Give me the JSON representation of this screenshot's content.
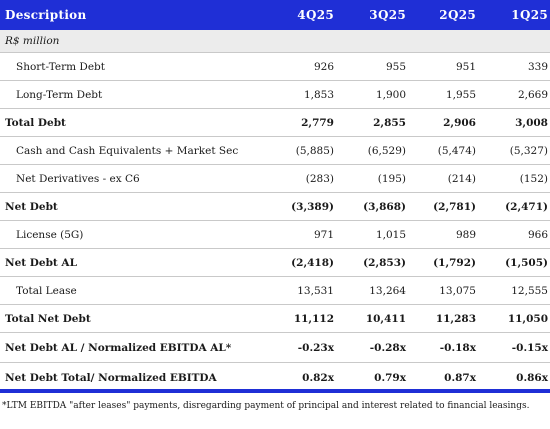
{
  "header": {
    "description": "Description",
    "periods": [
      "4Q25",
      "3Q25",
      "2Q25",
      "1Q25"
    ]
  },
  "unit_row": "R$ million",
  "rows": [
    {
      "label": "Short-Term Debt",
      "values": [
        "926",
        "955",
        "951",
        "339"
      ],
      "style": "sub"
    },
    {
      "label": "Long-Term Debt",
      "values": [
        "1,853",
        "1,900",
        "1,955",
        "2,669"
      ],
      "style": "sub"
    },
    {
      "label": "Total Debt",
      "values": [
        "2,779",
        "2,855",
        "2,906",
        "3,008"
      ],
      "style": "bold"
    },
    {
      "label": "Cash and Cash Equivalents + Market Sec",
      "values": [
        "(5,885)",
        "(6,529)",
        "(5,474)",
        "(5,327)"
      ],
      "style": "sub"
    },
    {
      "label": "Net Derivatives - ex C6",
      "values": [
        "(283)",
        "(195)",
        "(214)",
        "(152)"
      ],
      "style": "sub"
    },
    {
      "label": "Net Debt",
      "values": [
        "(3,389)",
        "(3,868)",
        "(2,781)",
        "(2,471)"
      ],
      "style": "bold"
    },
    {
      "label": "License (5G)",
      "values": [
        "971",
        "1,015",
        "989",
        "966"
      ],
      "style": "sub"
    },
    {
      "label": "Net Debt AL",
      "values": [
        "(2,418)",
        "(2,853)",
        "(1,792)",
        "(1,505)"
      ],
      "style": "bold"
    },
    {
      "label": "Total Lease",
      "values": [
        "13,531",
        "13,264",
        "13,075",
        "12,555"
      ],
      "style": "sub"
    },
    {
      "label": "Total Net Debt",
      "values": [
        "11,112",
        "10,411",
        "11,283",
        "11,050"
      ],
      "style": "bold"
    },
    {
      "label": "Net Debt AL / Normalized EBITDA AL*",
      "values": [
        "-0.23x",
        "-0.28x",
        "-0.18x",
        "-0.15x"
      ],
      "style": "bold tall"
    },
    {
      "label": "Net Debt Total/ Normalized EBITDA",
      "values": [
        "0.82x",
        "0.79x",
        "0.87x",
        "0.86x"
      ],
      "style": "bold tall"
    }
  ],
  "footnote": "*LTM EBITDA \"after leases\" payments, disregarding payment of principal and interest related to financial leasings.",
  "colors": {
    "header_bg": "#1f2fd6",
    "unit_bg": "#ececec"
  }
}
